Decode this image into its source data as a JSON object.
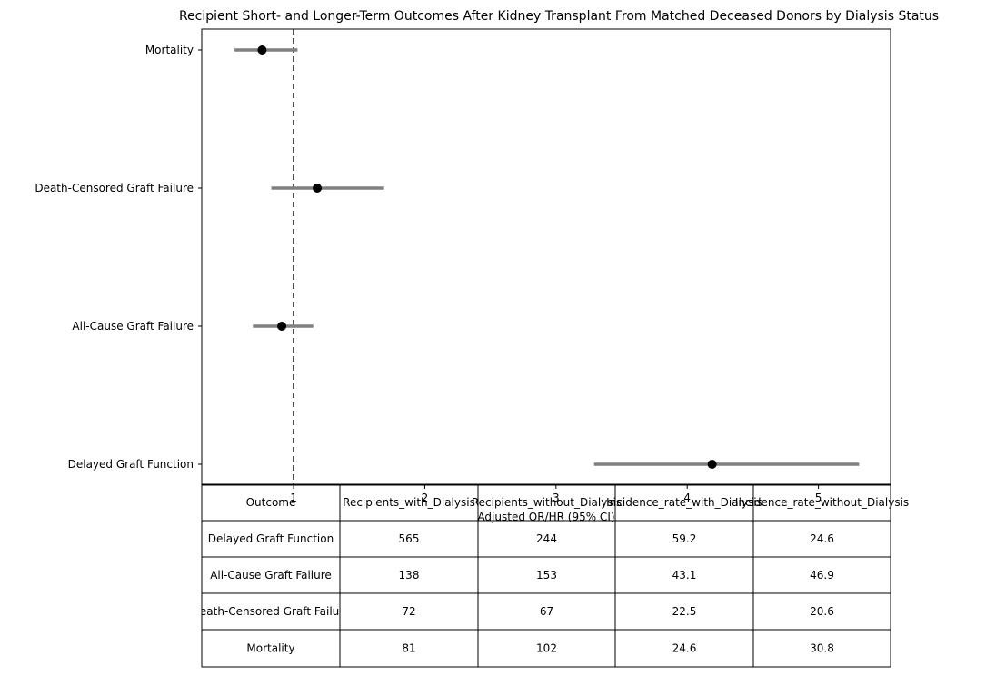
{
  "chart_data": {
    "type": "scatter",
    "title": "Recipient Short- and Longer-Term Outcomes After Kidney Transplant From Matched Deceased Donors by Dialysis Status",
    "xlabel": "Adjusted OR/HR (95% CI)",
    "xlim": [
      0.3,
      5.55
    ],
    "xticks": [
      1,
      2,
      3,
      4,
      5
    ],
    "reference_line": 1,
    "grid": false,
    "categories": [
      "Mortality",
      "Death-Censored Graft Failure",
      "All-Cause Graft Failure",
      "Delayed Graft Function"
    ],
    "points": [
      {
        "label": "Mortality",
        "estimate": 0.76,
        "lower": 0.55,
        "upper": 1.03
      },
      {
        "label": "Death-Censored Graft Failure",
        "estimate": 1.18,
        "lower": 0.83,
        "upper": 1.69
      },
      {
        "label": "All-Cause Graft Failure",
        "estimate": 0.91,
        "lower": 0.69,
        "upper": 1.15
      },
      {
        "label": "Delayed Graft Function",
        "estimate": 4.19,
        "lower": 3.29,
        "upper": 5.31
      }
    ],
    "marker_color": "#000000",
    "ci_color": "#808080",
    "table": {
      "columns": [
        "Outcome",
        "Recipients_with_Dialysis",
        "Recipients_without_Dialysis",
        "Incidence_rate_with_Dialysis",
        "Incidence_rate_without_Dialysis"
      ],
      "rows": [
        [
          "Delayed Graft Function",
          "565",
          "244",
          "59.2",
          "24.6"
        ],
        [
          "All-Cause Graft Failure",
          "138",
          "153",
          "43.1",
          "46.9"
        ],
        [
          "Death-Censored Graft Failure",
          "72",
          "67",
          "22.5",
          "20.6"
        ],
        [
          "Mortality",
          "81",
          "102",
          "24.6",
          "30.8"
        ]
      ]
    }
  }
}
